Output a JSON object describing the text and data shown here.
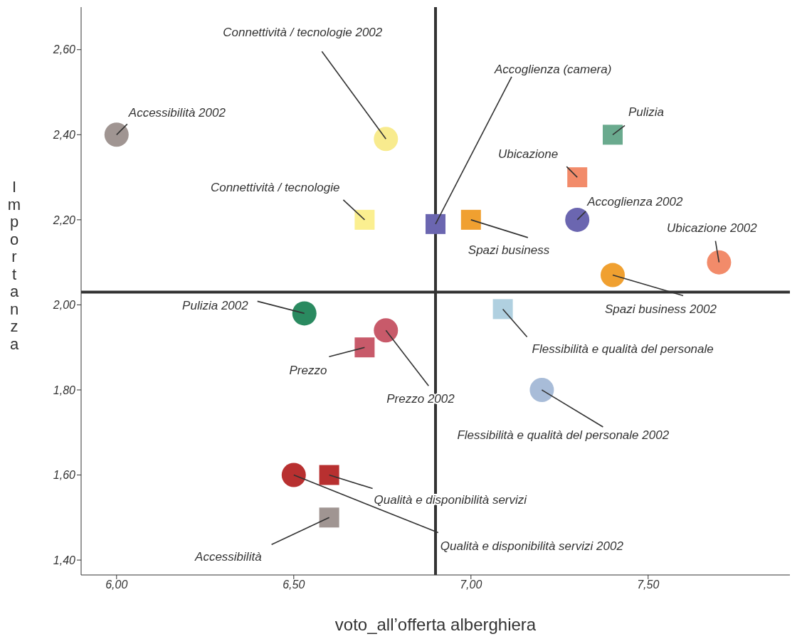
{
  "chart_data": {
    "type": "scatter",
    "xlabel": "voto_all’offerta alberghiera",
    "ylabel": "Importanza",
    "xlim": [
      5.9,
      7.9
    ],
    "ylim": [
      1.365,
      2.7
    ],
    "xticks": [
      {
        "value": 6,
        "label": "6,00"
      },
      {
        "value": 6.5,
        "label": "6,50"
      },
      {
        "value": 7,
        "label": "7,00"
      },
      {
        "value": 7.5,
        "label": "7,50"
      }
    ],
    "yticks": [
      {
        "value": 1.4,
        "label": "1,40"
      },
      {
        "value": 1.6,
        "label": "1,60"
      },
      {
        "value": 1.8,
        "label": "1,80"
      },
      {
        "value": 2,
        "label": "2,00"
      },
      {
        "value": 2.2,
        "label": "2,20"
      },
      {
        "value": 2.4,
        "label": "2,40"
      },
      {
        "value": 2.6,
        "label": "2,60"
      }
    ],
    "ref_lines": [
      {
        "axis": "x",
        "value": 6.9,
        "color": "#333333"
      },
      {
        "axis": "y",
        "value": 2.03,
        "color": "#333333"
      }
    ],
    "series": [
      {
        "name": "Accessibilità 2002",
        "color": "#a09592",
        "marker": "circle",
        "x": [
          6.0
        ],
        "values": [
          2.4
        ]
      },
      {
        "name": "Connettività / tecnologie 2002",
        "color": "#f8eb8e",
        "marker": "circle",
        "x": [
          6.76
        ],
        "values": [
          2.39
        ]
      },
      {
        "name": "Connettività / tecnologie",
        "color": "#fbef90",
        "marker": "square",
        "x": [
          6.7
        ],
        "values": [
          2.2
        ]
      },
      {
        "name": "Accoglienza (camera)",
        "color": "#6b66b0",
        "marker": "square",
        "x": [
          6.9
        ],
        "values": [
          2.19
        ]
      },
      {
        "name": "Spazi business",
        "color": "#f0a030",
        "marker": "square",
        "x": [
          7.0
        ],
        "values": [
          2.2
        ]
      },
      {
        "name": "Pulizia",
        "color": "#6aaa8e",
        "marker": "square",
        "x": [
          7.4
        ],
        "values": [
          2.4
        ]
      },
      {
        "name": "Ubicazione",
        "color": "#f28b6a",
        "marker": "square",
        "x": [
          7.3
        ],
        "values": [
          2.3
        ]
      },
      {
        "name": "Accoglienza 2002",
        "color": "#6b66b0",
        "marker": "circle",
        "x": [
          7.3
        ],
        "values": [
          2.2
        ]
      },
      {
        "name": "Ubicazione 2002",
        "color": "#f28b6a",
        "marker": "circle",
        "x": [
          7.7
        ],
        "values": [
          2.1
        ]
      },
      {
        "name": "Spazi business 2002",
        "color": "#f0a030",
        "marker": "circle",
        "x": [
          7.4
        ],
        "values": [
          2.07
        ]
      },
      {
        "name": "Pulizia 2002",
        "color": "#2a8a60",
        "marker": "circle",
        "x": [
          6.53
        ],
        "values": [
          1.98
        ]
      },
      {
        "name": "Flessibilità e qualità del personale",
        "color": "#b0d0e0",
        "marker": "square",
        "x": [
          7.09
        ],
        "values": [
          1.99
        ]
      },
      {
        "name": "Prezzo 2002",
        "color": "#c85a6a",
        "marker": "circle",
        "x": [
          6.76
        ],
        "values": [
          1.94
        ]
      },
      {
        "name": "Prezzo",
        "color": "#c85a6a",
        "marker": "square",
        "x": [
          6.7
        ],
        "values": [
          1.9
        ]
      },
      {
        "name": "Flessibilità e qualità del personale 2002",
        "color": "#a8bcd8",
        "marker": "circle",
        "x": [
          7.2
        ],
        "values": [
          1.8
        ]
      },
      {
        "name": "Qualità e disponibilità servizi 2002",
        "color": "#b83030",
        "marker": "circle",
        "x": [
          6.5
        ],
        "values": [
          1.6
        ]
      },
      {
        "name": "Qualità e disponibilità servizi",
        "color": "#b83030",
        "marker": "square",
        "x": [
          6.6
        ],
        "values": [
          1.6
        ]
      },
      {
        "name": "Accessibilità",
        "color": "#a09592",
        "marker": "square",
        "x": [
          6.6
        ],
        "values": [
          1.5
        ]
      }
    ]
  }
}
